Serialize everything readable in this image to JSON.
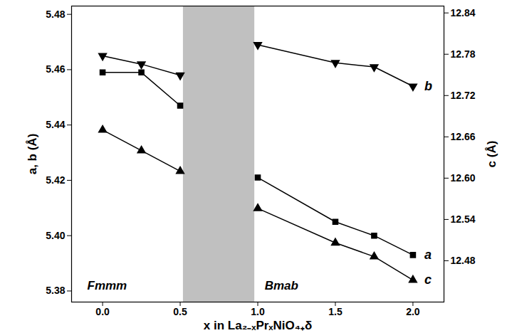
{
  "chart_data": {
    "type": "scatter",
    "x_label": "x in La₂₋ₓPrₓNiO₄₊δ",
    "y_label": "a, b (Å)",
    "y2_label": "c (Å)",
    "x": [
      0,
      0.25,
      0.5,
      1,
      1.5,
      1.75,
      2
    ],
    "series": [
      {
        "name": "b",
        "color": "#000000",
        "marker": "triangle-down",
        "line_style": "solid",
        "values": [
          5.465,
          5.462,
          5.458,
          5.469,
          5.4625,
          5.461,
          5.454
        ]
      },
      {
        "name": "a",
        "color": "#000000",
        "marker": "square",
        "line_style": "solid",
        "values": [
          5.459,
          5.459,
          5.447,
          5.421,
          5.405,
          5.4,
          5.393
        ]
      },
      {
        "name": "c",
        "color": "#000000",
        "marker": "triangle",
        "line_style": "solid",
        "axis": "y2",
        "values": [
          12.67,
          12.64,
          12.61,
          12.556,
          12.506,
          12.486,
          12.452
        ]
      }
    ],
    "xlim": [
      -0.2,
      2.2
    ],
    "xticks": [
      {
        "value": 0,
        "label": "0.0"
      },
      {
        "value": 0.5,
        "label": "0.5"
      },
      {
        "value": 1,
        "label": "1.0"
      },
      {
        "value": 1.5,
        "label": "1.5"
      },
      {
        "value": 2,
        "label": "2.0"
      }
    ],
    "ylim": [
      5.376,
      5.483
    ],
    "yticks": [
      5.38,
      {
        "value": 5.4,
        "label": "5.40"
      },
      5.42,
      5.44,
      5.46,
      5.48
    ],
    "y2lim": [
      12.42,
      12.85
    ],
    "y2ticks": [
      12.48,
      12.54,
      {
        "value": 12.6,
        "label": "12.60"
      },
      12.66,
      12.72,
      12.78,
      12.84
    ],
    "shaded_x": [
      0.52,
      0.98
    ],
    "annotations": [
      "Fmmm",
      "Bmab"
    ]
  }
}
